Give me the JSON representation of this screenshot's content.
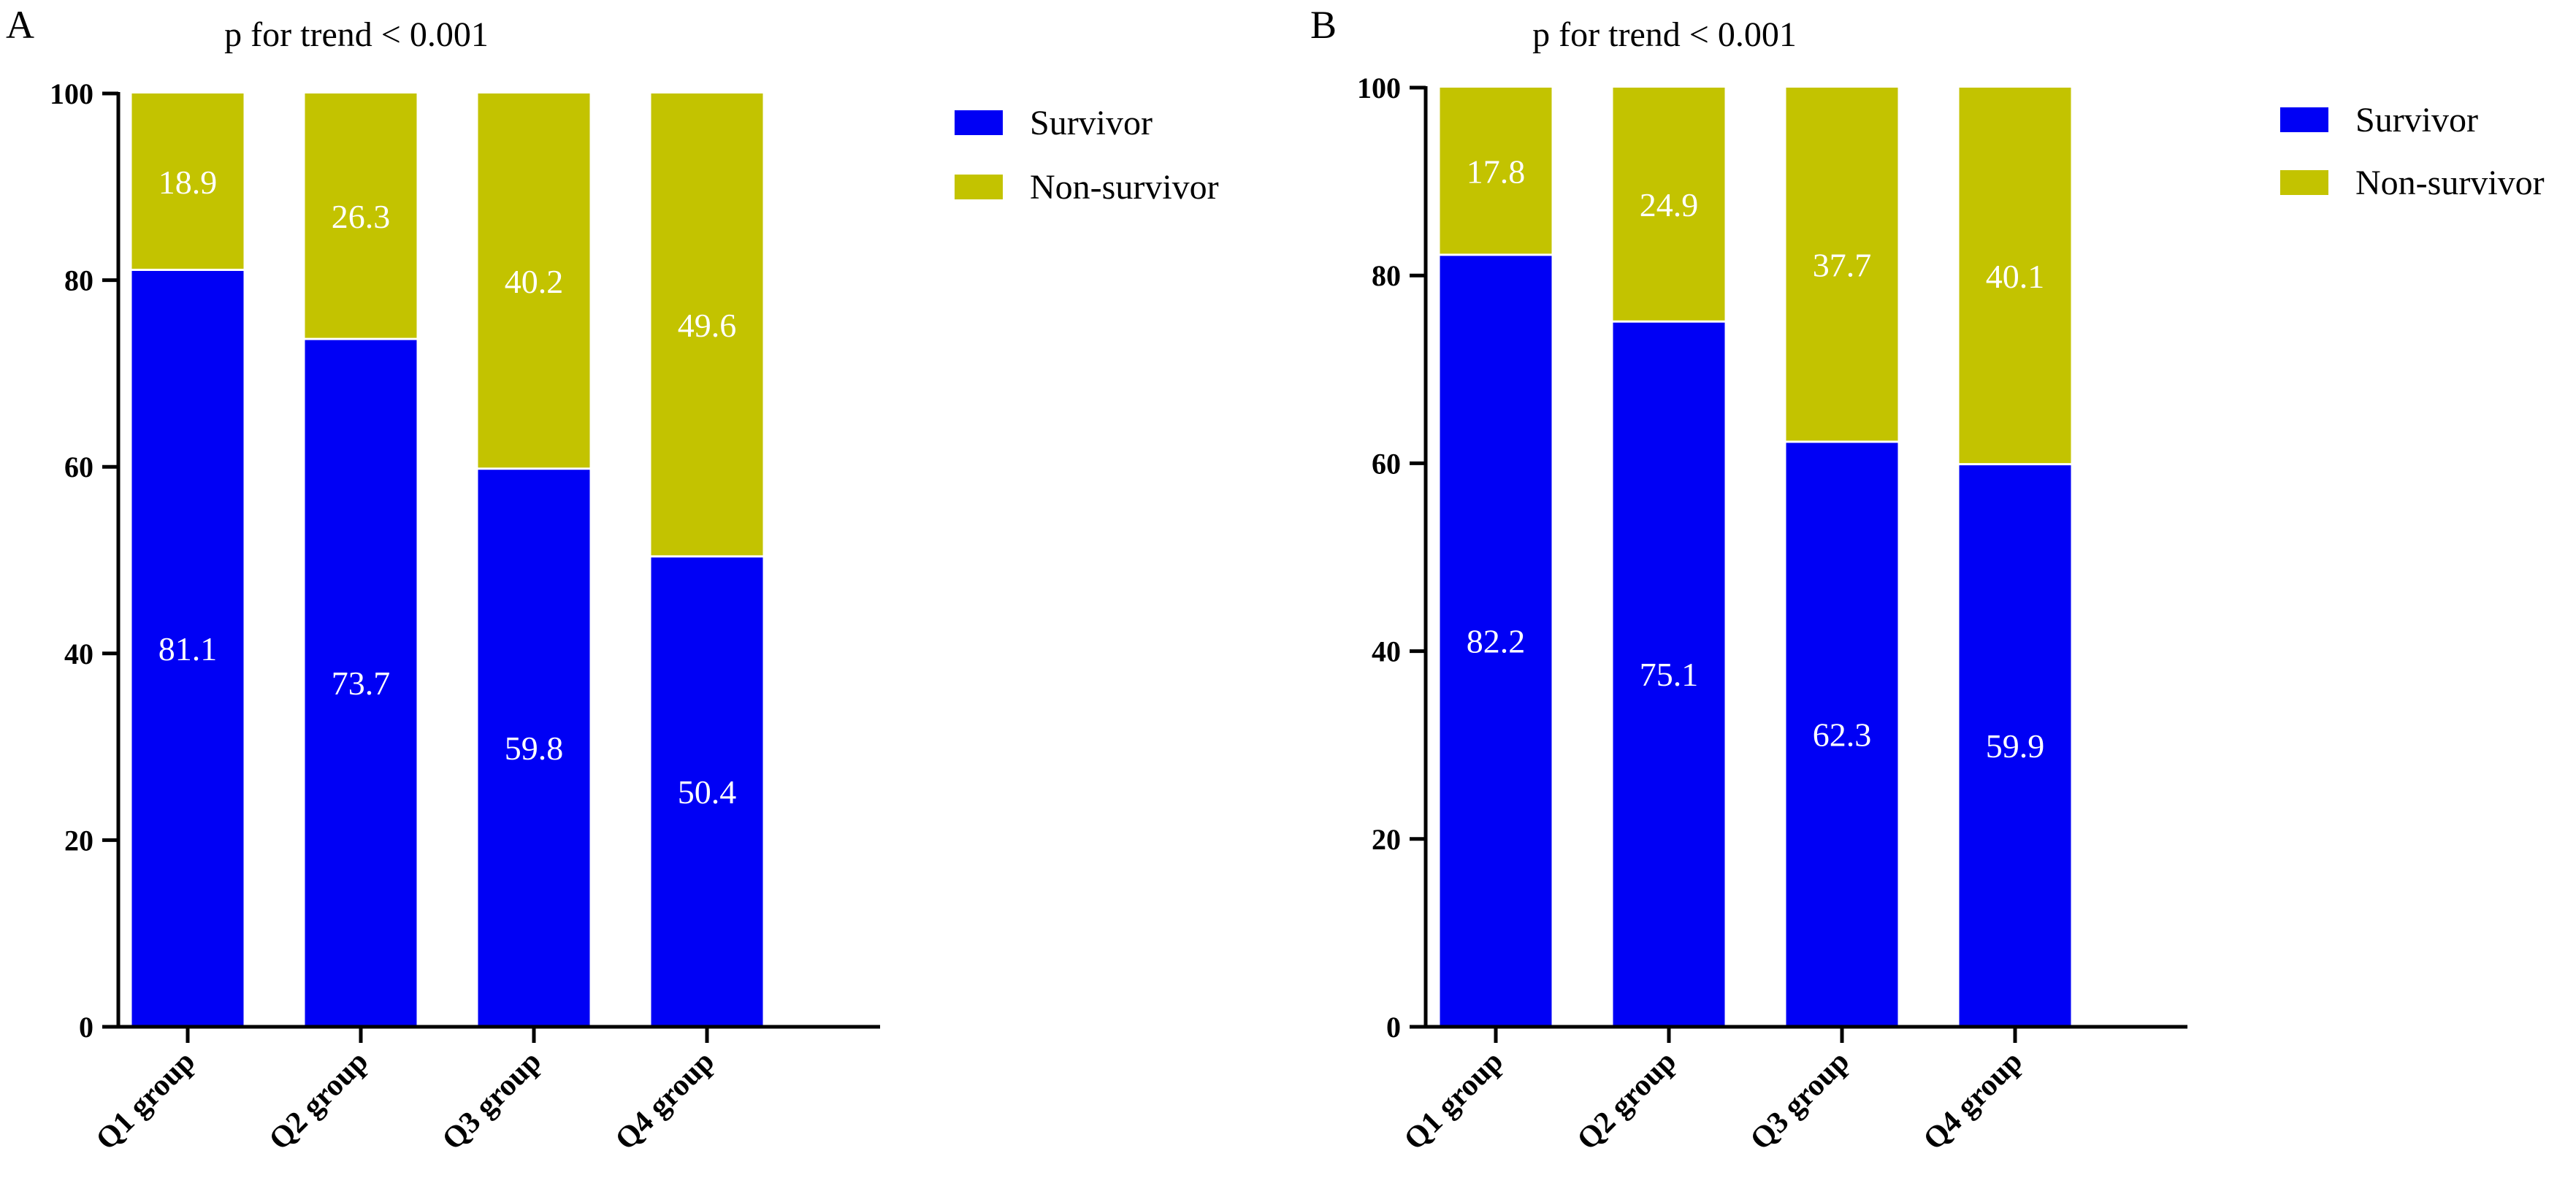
{
  "colors": {
    "survivor": "#0000F5",
    "non_survivor": "#C3C300",
    "divider": "#ffffff",
    "axis": "#000000"
  },
  "chart_data": [
    {
      "type": "bar",
      "stacked": true,
      "panel": "A",
      "title": "p for trend < 0.001",
      "categories": [
        "Q1 group",
        "Q2 group",
        "Q3 group",
        "Q4 group"
      ],
      "series": [
        {
          "name": "Survivor",
          "values": [
            81.1,
            73.7,
            59.8,
            50.4
          ]
        },
        {
          "name": "Non-survivor",
          "values": [
            18.9,
            26.3,
            40.2,
            49.6
          ]
        }
      ],
      "ylim": [
        0,
        100
      ],
      "yticks": [
        0,
        20,
        40,
        60,
        80,
        100
      ],
      "xlabel": "",
      "ylabel": "",
      "grid": false,
      "legend": "top-right"
    },
    {
      "type": "bar",
      "stacked": true,
      "panel": "B",
      "title": "p for trend < 0.001",
      "categories": [
        "Q1 group",
        "Q2 group",
        "Q3 group",
        "Q4 group"
      ],
      "series": [
        {
          "name": "Survivor",
          "values": [
            82.2,
            75.1,
            62.3,
            59.9
          ]
        },
        {
          "name": "Non-survivor",
          "values": [
            17.8,
            24.9,
            37.7,
            40.1
          ]
        }
      ],
      "ylim": [
        0,
        100
      ],
      "yticks": [
        0,
        20,
        40,
        60,
        80,
        100
      ],
      "xlabel": "",
      "ylabel": "",
      "grid": false,
      "legend": "top-right"
    }
  ]
}
